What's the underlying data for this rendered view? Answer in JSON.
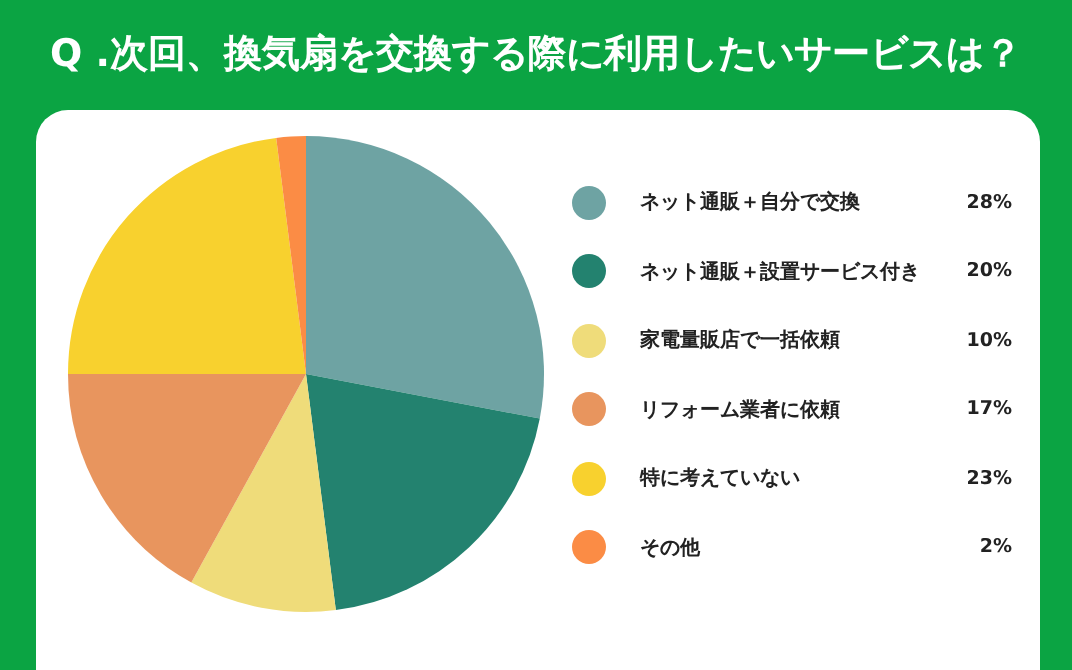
{
  "chart_data": {
    "type": "pie",
    "title": "Q .次回、換気扇を交換する際に利用したいサービスは？",
    "categories": [
      "ネット通販＋自分で交換",
      "ネット通販＋設置サービス付き",
      "家電量販店で一括依頼",
      "リフォーム業者に依頼",
      "特に考えていない",
      "その他"
    ],
    "values": [
      28,
      20,
      10,
      17,
      23,
      2
    ],
    "value_labels": [
      "28%",
      "20%",
      "10%",
      "17%",
      "23%",
      "2%"
    ],
    "colors": [
      "#6ea3a3",
      "#23826f",
      "#efdc7a",
      "#e8955e",
      "#f8d12e",
      "#fb8c45"
    ],
    "legend": "right"
  }
}
